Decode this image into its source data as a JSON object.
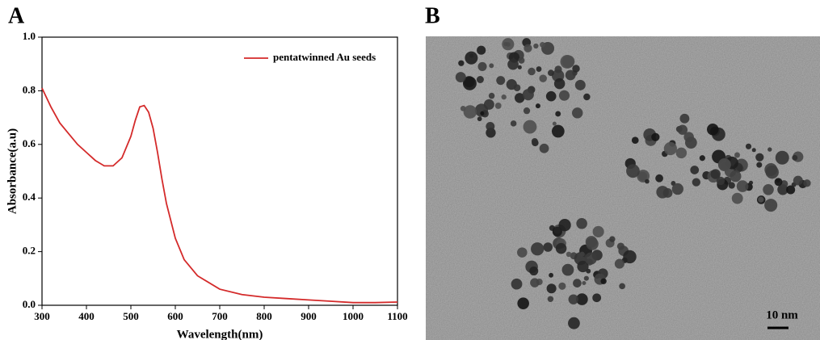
{
  "panel_labels": [
    "A",
    "B"
  ],
  "chart_data": {
    "type": "line",
    "x_label": "Wavelength(nm)",
    "y_label": "Absorbance(a.u)",
    "x": [
      300,
      320,
      340,
      360,
      380,
      400,
      420,
      440,
      460,
      480,
      500,
      510,
      520,
      530,
      540,
      550,
      560,
      570,
      580,
      600,
      620,
      650,
      700,
      750,
      800,
      850,
      900,
      950,
      1000,
      1050,
      1100
    ],
    "series": [
      {
        "name": "pentatwinned Au seeds",
        "color": "#d42a2a",
        "values": [
          0.81,
          0.74,
          0.68,
          0.64,
          0.6,
          0.57,
          0.54,
          0.52,
          0.52,
          0.55,
          0.63,
          0.69,
          0.74,
          0.745,
          0.72,
          0.66,
          0.57,
          0.47,
          0.38,
          0.25,
          0.17,
          0.11,
          0.06,
          0.04,
          0.03,
          0.025,
          0.02,
          0.015,
          0.01,
          0.01,
          0.012
        ]
      }
    ],
    "xlim": [
      300,
      1100
    ],
    "xticks": [
      300,
      400,
      500,
      600,
      700,
      800,
      900,
      1000,
      1100
    ],
    "ylim": [
      0,
      1
    ],
    "yticks": [
      {
        "value": 0,
        "label": "0.0"
      },
      0.2,
      0.4,
      0.6,
      0.8,
      {
        "value": 1,
        "label": "1.0"
      }
    ],
    "legend": "upper right"
  },
  "image": {
    "scale_bar": "10 nm"
  }
}
